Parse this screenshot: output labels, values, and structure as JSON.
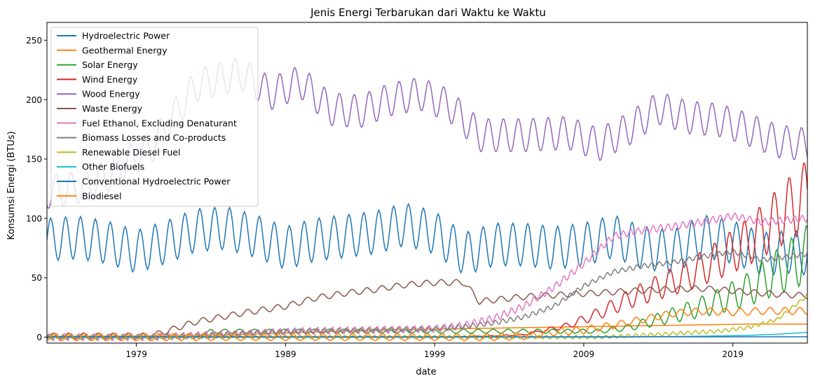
{
  "chart_data": {
    "type": "line",
    "title": "Jenis Energi Terbarukan dari Waktu ke Waktu",
    "xlabel": "date",
    "ylabel": "Konsumsi Energi (BTUs)",
    "x_start": "1973-01",
    "x_end": "2024-01",
    "xlim": [
      1973.0,
      2024.0
    ],
    "ylim": [
      -5,
      265
    ],
    "x_ticks": [
      {
        "x": 1979,
        "label": "1979"
      },
      {
        "x": 1989,
        "label": "1989"
      },
      {
        "x": 1999,
        "label": "1999"
      },
      {
        "x": 2009,
        "label": "2009"
      },
      {
        "x": 2019,
        "label": "2019"
      }
    ],
    "y_ticks": [
      0,
      50,
      100,
      150,
      200,
      250
    ],
    "grid": false,
    "legend_position": "top-left",
    "series": [
      {
        "name": "Hydroelectric Power",
        "color": "#1f77b4",
        "x": [
          1973,
          1975,
          1977,
          1979,
          1981,
          1983,
          1985,
          1987,
          1989,
          1991,
          1993,
          1995,
          1997,
          1999,
          2001,
          2003,
          2005,
          2007,
          2009,
          2011,
          2013,
          2015,
          2017,
          2019,
          2021,
          2023,
          2024
        ],
        "y": [
          82,
          84,
          80,
          72,
          80,
          90,
          92,
          85,
          75,
          82,
          85,
          88,
          95,
          88,
          70,
          78,
          78,
          75,
          78,
          85,
          75,
          72,
          85,
          80,
          70,
          72,
          70
        ],
        "amplitude": 18,
        "period": 1.0
      },
      {
        "name": "Geothermal Energy",
        "color": "#ff7f0e",
        "x": [
          1973,
          1980,
          1985,
          1990,
          1995,
          2000,
          2005,
          2010,
          2015,
          2020,
          2024
        ],
        "y": [
          0.5,
          1,
          2,
          4,
          6,
          7,
          8,
          9,
          10,
          11,
          11
        ]
      },
      {
        "name": "Solar Energy",
        "color": "#2ca02c",
        "x": [
          1973,
          1983,
          1984,
          2000,
          2010,
          2012,
          2014,
          2016,
          2018,
          2020,
          2022,
          2024
        ],
        "y": [
          0,
          0,
          5,
          5,
          5,
          8,
          15,
          22,
          30,
          40,
          55,
          70
        ],
        "amplitude_frac": 0.35,
        "period": 1.0
      },
      {
        "name": "Wind Energy",
        "color": "#d62728",
        "x": [
          1973,
          2000,
          2005,
          2008,
          2010,
          2012,
          2014,
          2016,
          2018,
          2020,
          2022,
          2024
        ],
        "y": [
          0,
          0,
          2,
          10,
          20,
          32,
          42,
          52,
          65,
          80,
          100,
          120
        ],
        "amplitude_frac": 0.25,
        "period": 1.0
      },
      {
        "name": "Wood Energy",
        "color": "#9467bd",
        "x": [
          1973,
          1976,
          1980,
          1983,
          1986,
          1988,
          1990,
          1992,
          1994,
          1996,
          1998,
          2000,
          2002,
          2005,
          2008,
          2010,
          2012,
          2014,
          2016,
          2018,
          2020,
          2022,
          2024
        ],
        "y": [
          122,
          128,
          160,
          212,
          222,
          205,
          215,
          192,
          190,
          200,
          205,
          195,
          170,
          170,
          172,
          162,
          175,
          193,
          185,
          183,
          175,
          165,
          162
        ],
        "amplitude": 14,
        "period": 1.0
      },
      {
        "name": "Waste Energy",
        "color": "#8c564b",
        "x": [
          1973,
          1980,
          1981,
          1983,
          1986,
          1989,
          1991,
          1993,
          1995,
          1997,
          1999,
          2001,
          2002,
          2005,
          2008,
          2011,
          2014,
          2017,
          2020,
          2022,
          2024
        ],
        "y": [
          1,
          1,
          5,
          13,
          20,
          26,
          33,
          37,
          40,
          44,
          46,
          46,
          30,
          34,
          36,
          38,
          40,
          41,
          38,
          36,
          35
        ],
        "amplitude": 2.5,
        "period": 1.0
      },
      {
        "name": "Fuel Ethanol, Excluding Denaturant",
        "color": "#e377c2",
        "x": [
          1973,
          1980,
          1986,
          1990,
          1995,
          1999,
          2001,
          2003,
          2005,
          2007,
          2009,
          2011,
          2013,
          2015,
          2017,
          2019,
          2021,
          2024
        ],
        "y": [
          0,
          0,
          3,
          5,
          6,
          7,
          10,
          16,
          26,
          42,
          62,
          85,
          90,
          93,
          97,
          102,
          97,
          100
        ],
        "amplitude": 3,
        "period": 0.5
      },
      {
        "name": "Biomass Losses and Co-products",
        "color": "#7f7f7f",
        "x": [
          1973,
          1980,
          1986,
          1990,
          1995,
          1999,
          2001,
          2003,
          2005,
          2007,
          2009,
          2011,
          2013,
          2015,
          2017,
          2019,
          2021,
          2024
        ],
        "y": [
          0,
          0,
          3,
          5,
          6,
          7,
          9,
          12,
          17,
          26,
          43,
          55,
          60,
          63,
          68,
          72,
          65,
          70
        ],
        "amplitude": 2,
        "period": 0.5
      },
      {
        "name": "Renewable Diesel Fuel",
        "color": "#bcbd22",
        "x": [
          1973,
          2010,
          2012,
          2015,
          2018,
          2020,
          2022,
          2023,
          2024
        ],
        "y": [
          0,
          0,
          1,
          3,
          5,
          8,
          15,
          25,
          35
        ],
        "amplitude": 1.5,
        "period": 0.5
      },
      {
        "name": "Other Biofuels",
        "color": "#17becf",
        "x": [
          1973,
          2010,
          2015,
          2018,
          2020,
          2022,
          2024
        ],
        "y": [
          0,
          0,
          0.5,
          1,
          1.5,
          2.5,
          4
        ]
      },
      {
        "name": "Conventional Hydroelectric Power",
        "color": "#1f77b4",
        "x": [
          1973,
          2024
        ],
        "y": [
          0.3,
          0.3
        ]
      },
      {
        "name": "Biodiesel",
        "color": "#ff7f0e",
        "x": [
          1973,
          2003,
          2005,
          2007,
          2009,
          2011,
          2013,
          2015,
          2017,
          2019,
          2021,
          2024
        ],
        "y": [
          0,
          0,
          1,
          4,
          6,
          10,
          15,
          20,
          22,
          21,
          22,
          22
        ],
        "amplitude": 3,
        "period": 1.0
      }
    ]
  }
}
